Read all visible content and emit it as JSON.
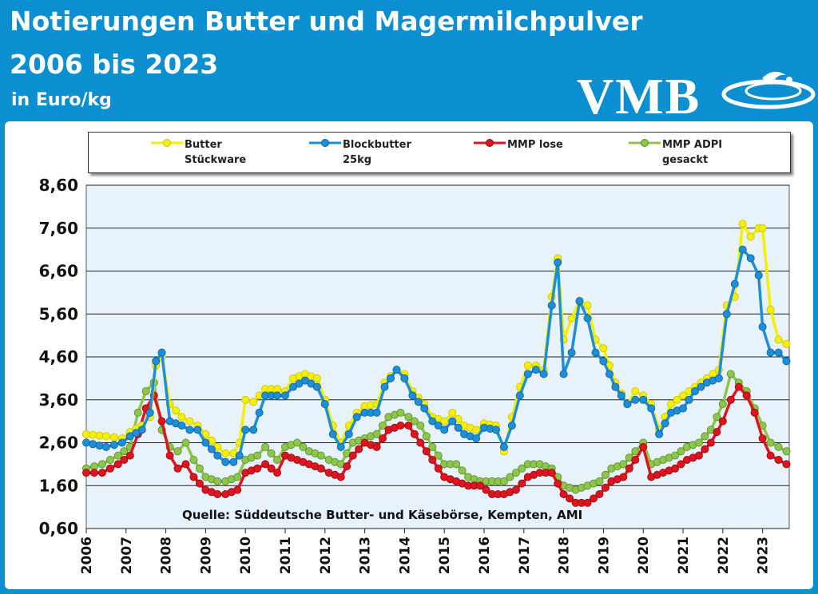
{
  "header": {
    "title_line1": "Notierungen Butter und Magermilchpulver",
    "title_line2": "2006 bis 2023",
    "subtitle": "in Euro/kg",
    "logo_text": "VMB"
  },
  "colors": {
    "background": "#0b8fd0",
    "plot_bg": "#e8f2fb",
    "butter": "#f5f000",
    "blockbutter": "#1c8fd8",
    "mmp_lose": "#e0141e",
    "mmp_adpi": "#8cc64a"
  },
  "legend": {
    "items": [
      {
        "line1": "Butter",
        "line2": "Stückware"
      },
      {
        "line1": "Blockbutter",
        "line2": "25kg"
      },
      {
        "line1": "MMP lose",
        "line2": ""
      },
      {
        "line1": "MMP ADPI",
        "line2": "gesackt"
      }
    ]
  },
  "source_note": "Quelle: Süddeutsche Butter- und Käsebörse, Kempten, AMI",
  "chart_data": {
    "type": "line",
    "title": "Notierungen Butter und Magermilchpulver 2006 bis 2023",
    "ylabel": "in Euro/kg",
    "xlabel": "",
    "ylim": [
      0.6,
      8.6
    ],
    "xlim": [
      2006.0,
      2023.67
    ],
    "yticks": [
      "0,60",
      "1,60",
      "2,60",
      "3,60",
      "4,60",
      "5,60",
      "6,60",
      "7,60",
      "8,60"
    ],
    "ytick_values": [
      0.6,
      1.6,
      2.6,
      3.6,
      4.6,
      5.6,
      6.6,
      7.6,
      8.6
    ],
    "xticks": [
      "2006",
      "2007",
      "2008",
      "2009",
      "2010",
      "2011",
      "2012",
      "2013",
      "2014",
      "2015",
      "2016",
      "2017",
      "2018",
      "2019",
      "2020",
      "2021",
      "2022",
      "2023"
    ],
    "grid": true,
    "legend_position": "top",
    "series": [
      {
        "name": "Butter Stückware",
        "x": [
          2006.0,
          2006.5,
          2006.9,
          2007.1,
          2007.4,
          2007.6,
          2007.75,
          2007.9,
          2008.1,
          2008.4,
          2008.6,
          2008.8,
          2009.0,
          2009.3,
          2009.5,
          2009.7,
          2009.85,
          2010.0,
          2010.2,
          2010.5,
          2010.8,
          2011.0,
          2011.2,
          2011.5,
          2011.8,
          2012.0,
          2012.2,
          2012.4,
          2012.6,
          2012.8,
          2013.0,
          2013.3,
          2013.5,
          2013.8,
          2014.0,
          2014.2,
          2014.5,
          2014.7,
          2015.0,
          2015.2,
          2015.5,
          2015.8,
          2016.0,
          2016.3,
          2016.5,
          2016.7,
          2016.9,
          2017.1,
          2017.3,
          2017.5,
          2017.7,
          2017.85,
          2018.0,
          2018.2,
          2018.4,
          2018.6,
          2018.8,
          2019.0,
          2019.3,
          2019.6,
          2019.8,
          2020.0,
          2020.2,
          2020.4,
          2020.7,
          2021.0,
          2021.3,
          2021.6,
          2021.9,
          2022.1,
          2022.3,
          2022.5,
          2022.7,
          2022.9,
          2023.0,
          2023.2,
          2023.4,
          2023.6
        ],
        "y": [
          2.8,
          2.75,
          2.7,
          2.85,
          3.0,
          3.2,
          4.4,
          4.6,
          3.5,
          3.2,
          3.1,
          3.0,
          2.8,
          2.5,
          2.35,
          2.35,
          2.6,
          3.6,
          3.55,
          3.85,
          3.85,
          3.8,
          4.1,
          4.2,
          4.1,
          3.6,
          3.0,
          2.6,
          3.0,
          3.3,
          3.45,
          3.5,
          4.0,
          4.3,
          4.2,
          3.8,
          3.5,
          3.2,
          3.1,
          3.3,
          3.0,
          2.9,
          3.05,
          3.0,
          2.4,
          3.2,
          3.9,
          4.4,
          4.4,
          4.3,
          6.0,
          6.9,
          5.0,
          5.5,
          5.9,
          5.8,
          5.0,
          4.8,
          4.0,
          3.5,
          3.8,
          3.7,
          3.5,
          2.9,
          3.5,
          3.7,
          3.9,
          4.1,
          4.3,
          5.8,
          6.0,
          7.7,
          7.4,
          7.6,
          7.6,
          5.7,
          5.0,
          4.9
        ]
      },
      {
        "name": "Blockbutter 25kg",
        "x": [
          2006.0,
          2006.5,
          2006.9,
          2007.1,
          2007.4,
          2007.6,
          2007.75,
          2007.9,
          2008.1,
          2008.4,
          2008.6,
          2008.8,
          2009.0,
          2009.3,
          2009.5,
          2009.7,
          2009.85,
          2010.0,
          2010.2,
          2010.5,
          2010.8,
          2011.0,
          2011.2,
          2011.5,
          2011.8,
          2012.0,
          2012.2,
          2012.4,
          2012.6,
          2012.8,
          2013.0,
          2013.3,
          2013.5,
          2013.8,
          2014.0,
          2014.2,
          2014.5,
          2014.7,
          2015.0,
          2015.2,
          2015.5,
          2015.8,
          2016.0,
          2016.3,
          2016.5,
          2016.7,
          2016.9,
          2017.1,
          2017.3,
          2017.5,
          2017.7,
          2017.85,
          2018.0,
          2018.2,
          2018.4,
          2018.6,
          2018.8,
          2019.0,
          2019.3,
          2019.6,
          2019.8,
          2020.0,
          2020.2,
          2020.4,
          2020.7,
          2021.0,
          2021.3,
          2021.6,
          2021.9,
          2022.1,
          2022.3,
          2022.5,
          2022.7,
          2022.9,
          2023.0,
          2023.2,
          2023.4,
          2023.6
        ],
        "y": [
          2.6,
          2.5,
          2.6,
          2.75,
          2.9,
          3.3,
          4.5,
          4.7,
          3.1,
          3.0,
          2.9,
          2.9,
          2.6,
          2.3,
          2.15,
          2.15,
          2.3,
          2.9,
          2.9,
          3.7,
          3.7,
          3.7,
          3.9,
          4.05,
          3.9,
          3.5,
          2.8,
          2.5,
          2.8,
          3.2,
          3.3,
          3.3,
          3.9,
          4.3,
          4.1,
          3.7,
          3.4,
          3.1,
          2.9,
          3.1,
          2.8,
          2.7,
          2.95,
          2.9,
          2.5,
          3.0,
          3.7,
          4.2,
          4.3,
          4.2,
          5.8,
          6.8,
          4.2,
          4.7,
          5.9,
          5.5,
          4.7,
          4.5,
          3.9,
          3.5,
          3.6,
          3.6,
          3.4,
          2.8,
          3.3,
          3.4,
          3.8,
          4.0,
          4.1,
          5.6,
          6.3,
          7.1,
          6.9,
          6.5,
          5.3,
          4.7,
          4.7,
          4.5
        ]
      },
      {
        "name": "MMP lose",
        "x": [
          2006.0,
          2006.4,
          2006.8,
          2007.1,
          2007.3,
          2007.5,
          2007.7,
          2007.9,
          2008.1,
          2008.3,
          2008.5,
          2008.7,
          2009.0,
          2009.3,
          2009.5,
          2009.8,
          2010.0,
          2010.3,
          2010.5,
          2010.8,
          2011.0,
          2011.3,
          2011.6,
          2011.9,
          2012.1,
          2012.4,
          2012.7,
          2013.0,
          2013.3,
          2013.6,
          2013.9,
          2014.1,
          2014.4,
          2014.7,
          2015.0,
          2015.3,
          2015.6,
          2015.9,
          2016.2,
          2016.5,
          2016.8,
          2017.1,
          2017.4,
          2017.7,
          2018.0,
          2018.3,
          2018.6,
          2018.9,
          2019.2,
          2019.5,
          2019.8,
          2020.0,
          2020.2,
          2020.5,
          2020.8,
          2021.1,
          2021.4,
          2021.7,
          2022.0,
          2022.2,
          2022.4,
          2022.6,
          2022.8,
          2023.0,
          2023.2,
          2023.4,
          2023.6
        ],
        "y": [
          1.9,
          1.9,
          2.1,
          2.3,
          2.8,
          3.4,
          3.7,
          3.1,
          2.3,
          2.0,
          2.1,
          1.8,
          1.5,
          1.4,
          1.4,
          1.5,
          1.9,
          2.0,
          2.1,
          1.9,
          2.3,
          2.2,
          2.1,
          2.0,
          1.9,
          1.8,
          2.3,
          2.6,
          2.5,
          2.9,
          3.0,
          3.0,
          2.6,
          2.2,
          1.8,
          1.7,
          1.6,
          1.6,
          1.4,
          1.4,
          1.5,
          1.8,
          1.9,
          1.9,
          1.4,
          1.2,
          1.2,
          1.4,
          1.7,
          1.8,
          2.2,
          2.5,
          1.8,
          1.9,
          2.0,
          2.2,
          2.3,
          2.6,
          3.1,
          3.6,
          3.9,
          3.7,
          3.3,
          2.7,
          2.3,
          2.2,
          2.1
        ]
      },
      {
        "name": "MMP ADPI gesackt",
        "x": [
          2006.0,
          2006.4,
          2006.8,
          2007.1,
          2007.3,
          2007.5,
          2007.7,
          2007.9,
          2008.1,
          2008.3,
          2008.5,
          2008.7,
          2009.0,
          2009.3,
          2009.5,
          2009.8,
          2010.0,
          2010.3,
          2010.5,
          2010.8,
          2011.0,
          2011.3,
          2011.6,
          2011.9,
          2012.1,
          2012.4,
          2012.7,
          2013.0,
          2013.3,
          2013.6,
          2013.9,
          2014.1,
          2014.4,
          2014.7,
          2015.0,
          2015.3,
          2015.6,
          2015.9,
          2016.2,
          2016.5,
          2016.8,
          2017.1,
          2017.4,
          2017.7,
          2018.0,
          2018.3,
          2018.6,
          2018.9,
          2019.2,
          2019.5,
          2019.8,
          2020.0,
          2020.2,
          2020.5,
          2020.8,
          2021.1,
          2021.4,
          2021.7,
          2022.0,
          2022.2,
          2022.4,
          2022.6,
          2022.8,
          2023.0,
          2023.2,
          2023.4,
          2023.6
        ],
        "y": [
          2.0,
          2.1,
          2.3,
          2.5,
          3.3,
          3.8,
          4.0,
          2.9,
          2.5,
          2.4,
          2.6,
          2.2,
          1.8,
          1.7,
          1.7,
          1.8,
          2.2,
          2.3,
          2.5,
          2.2,
          2.5,
          2.6,
          2.4,
          2.3,
          2.2,
          2.1,
          2.6,
          2.7,
          2.8,
          3.2,
          3.3,
          3.2,
          3.0,
          2.5,
          2.1,
          2.1,
          1.8,
          1.7,
          1.7,
          1.7,
          1.9,
          2.1,
          2.1,
          2.0,
          1.6,
          1.5,
          1.6,
          1.7,
          2.0,
          2.1,
          2.4,
          2.6,
          2.1,
          2.2,
          2.3,
          2.5,
          2.6,
          2.9,
          3.5,
          4.2,
          4.0,
          3.8,
          3.4,
          3.0,
          2.6,
          2.5,
          2.4
        ]
      }
    ]
  }
}
